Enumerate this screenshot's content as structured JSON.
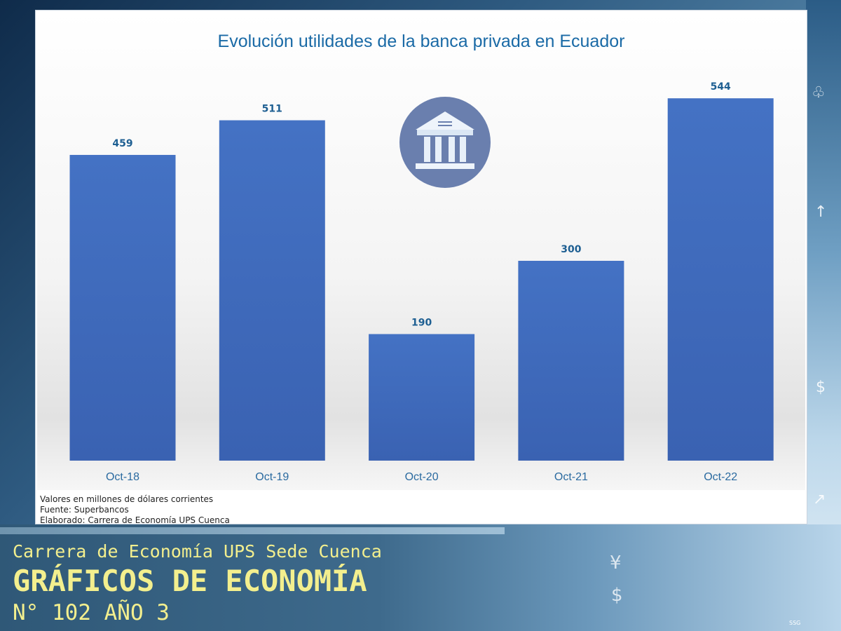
{
  "chart_data": {
    "type": "bar",
    "title": "Evolución utilidades de la banca privada en Ecuador",
    "categories": [
      "Oct-18",
      "Oct-19",
      "Oct-20",
      "Oct-21",
      "Oct-22"
    ],
    "values": [
      459,
      511,
      190,
      300,
      544
    ],
    "data_labels": [
      "459",
      "511",
      "190",
      "300",
      "544"
    ],
    "ylim": [
      0,
      600
    ],
    "grid": false,
    "legend": "none",
    "bar_color": "#3f6ec4"
  },
  "notes": {
    "line1": "Valores en millones de dólares corrientes",
    "line2": "Fuente: Superbancos",
    "line3": "Elaborado: Carrera de Economía UPS Cuenca"
  },
  "footer": {
    "line1": "Carrera de Economía UPS Sede Cuenca",
    "line2": "GRÁFICOS DE ECONOMÍA",
    "line3": "N° 102 AÑO 3"
  },
  "watermark": "SSG",
  "icons": {
    "bank": "bank-icon",
    "background_symbols": [
      "dollar-icon",
      "yen-icon",
      "chart-icon"
    ]
  }
}
